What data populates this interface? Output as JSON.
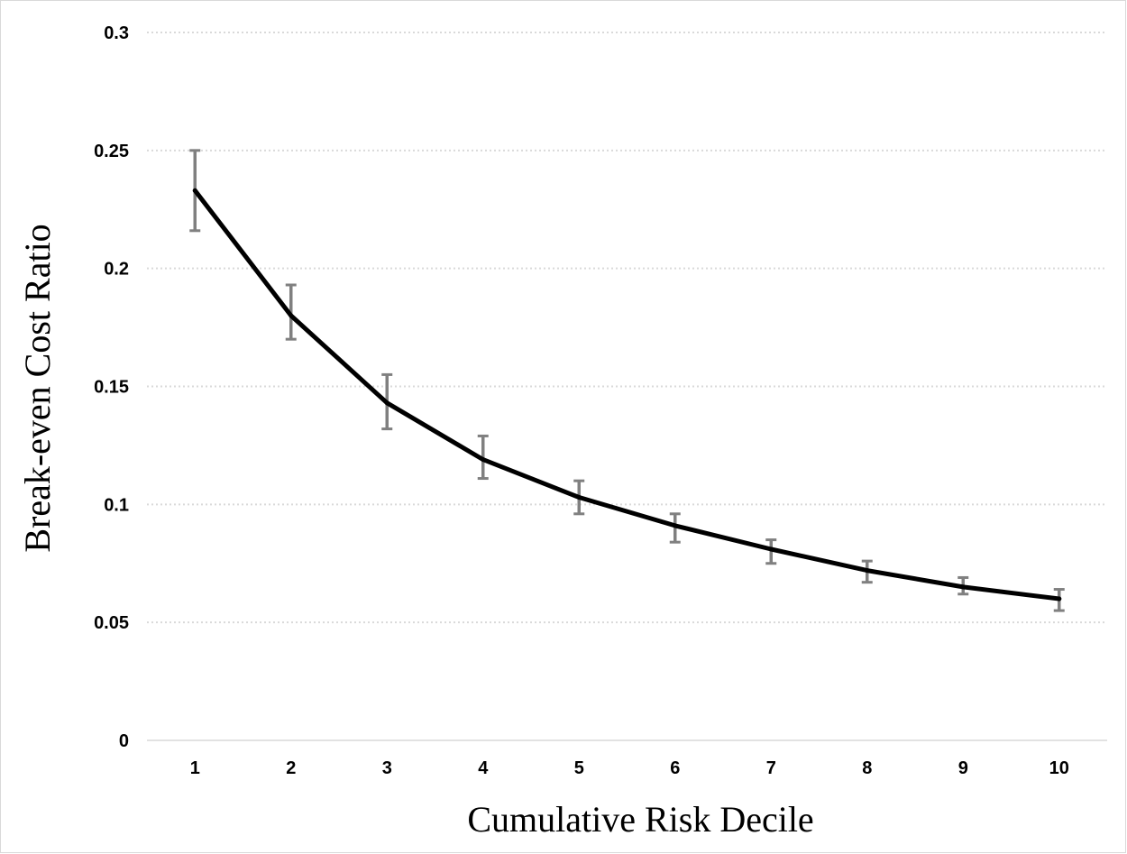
{
  "chart_data": {
    "type": "line",
    "title": "",
    "xlabel": "Cumulative Risk Decile",
    "ylabel": "Break-even Cost Ratio",
    "x": [
      1,
      2,
      3,
      4,
      5,
      6,
      7,
      8,
      9,
      10
    ],
    "x_tick_labels": [
      "1",
      "2",
      "3",
      "4",
      "5",
      "6",
      "7",
      "8",
      "9",
      "10"
    ],
    "y_tick_values": [
      0,
      0.05,
      0.1,
      0.15,
      0.2,
      0.25,
      0.3
    ],
    "y_tick_labels": [
      "0",
      "0.05",
      "0.1",
      "0.15",
      "0.2",
      "0.25",
      "0.3"
    ],
    "ylim": [
      0,
      0.3
    ],
    "grid": "horizontal dotted",
    "legend": "none",
    "series": [
      {
        "values": [
          0.233,
          0.18,
          0.143,
          0.119,
          0.103,
          0.091,
          0.081,
          0.072,
          0.065,
          0.06
        ],
        "error_low": [
          0.216,
          0.17,
          0.132,
          0.111,
          0.096,
          0.084,
          0.075,
          0.067,
          0.062,
          0.055
        ],
        "error_high": [
          0.25,
          0.193,
          0.155,
          0.129,
          0.11,
          0.096,
          0.085,
          0.076,
          0.069,
          0.064
        ],
        "color": "#000000",
        "error_color": "#808080"
      }
    ],
    "gridline_color": "#d9d9d9"
  }
}
